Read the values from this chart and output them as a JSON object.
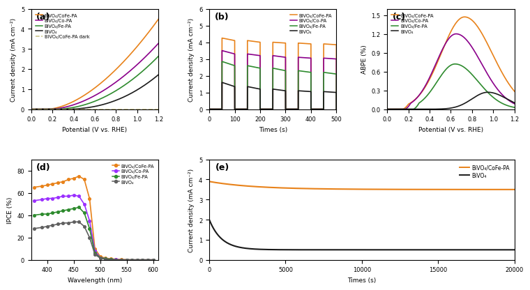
{
  "panel_a": {
    "title": "(a)",
    "xlabel": "Potential (V vs. RHE)",
    "ylabel": "Current density (mA cm⁻²)",
    "xlim": [
      0.0,
      1.2
    ],
    "ylim": [
      0,
      5
    ],
    "yticks": [
      0,
      1,
      2,
      3,
      4,
      5
    ],
    "colors": {
      "CoFe": "#E8821A",
      "Co": "#8B008B",
      "Fe": "#2E8B2E",
      "bare": "#1A1A1A",
      "dark": "#C8C080"
    },
    "legend": [
      "BiVO₄/CoFe-PA",
      "BiVO₄/Co-PA",
      "BiVO₄/Fe-PA",
      "BiVO₄",
      "BiVO₄/CoFe-PA dark"
    ]
  },
  "panel_b": {
    "title": "(b)",
    "xlabel": "Times (s)",
    "ylabel": "Current density (mA cm⁻²)",
    "xlim": [
      0,
      500
    ],
    "ylim": [
      0,
      6
    ],
    "yticks": [
      0,
      1,
      2,
      3,
      4,
      5,
      6
    ],
    "colors": {
      "CoFe": "#E8821A",
      "Co": "#8B008B",
      "Fe": "#2E8B2E",
      "bare": "#1A1A1A"
    },
    "legend": [
      "BiVO₄/CoFe-PA",
      "BiVO₄/Co-PA",
      "BiVO₄/Fe-PA",
      "BiVO₄"
    ]
  },
  "panel_c": {
    "title": "(c)",
    "xlabel": "Potential (V vs. RHE)",
    "ylabel": "ABPE (%)",
    "xlim": [
      0.0,
      1.2
    ],
    "ylim": [
      0,
      1.6
    ],
    "yticks": [
      0.0,
      0.3,
      0.6,
      0.9,
      1.2,
      1.5
    ],
    "colors": {
      "CoFe": "#E8821A",
      "Co": "#8B008B",
      "Fe": "#2E8B2E",
      "bare": "#1A1A1A"
    },
    "legend": [
      "BiVO₄/CoFe-PA",
      "BiVO₄/Co-PA",
      "BiVO₄/Fe-PA",
      "BiVO₄"
    ]
  },
  "panel_d": {
    "title": "(d)",
    "xlabel": "Wavelength (nm)",
    "ylabel": "IPCE (%)",
    "xlim": [
      370,
      610
    ],
    "ylim": [
      0,
      90
    ],
    "yticks": [
      0,
      20,
      40,
      60,
      80
    ],
    "xticks": [
      400,
      450,
      500,
      550,
      600
    ],
    "colors": {
      "CoFe": "#E8821A",
      "Co": "#9B30FF",
      "Fe": "#2E8B2E",
      "bare": "#606060"
    },
    "legend": [
      "BiVO₄/CoFe-PA",
      "BiVO₄/Co-PA",
      "BiVO₄/Fe-PA",
      "BiVO₄"
    ]
  },
  "panel_e": {
    "title": "(e)",
    "xlabel": "Times (s)",
    "ylabel": "Current density (mA cm⁻²)",
    "xlim": [
      0,
      20000
    ],
    "ylim": [
      0,
      5
    ],
    "yticks": [
      0,
      1,
      2,
      3,
      4,
      5
    ],
    "xticks": [
      0,
      5000,
      10000,
      15000,
      20000
    ],
    "colors": {
      "CoFe": "#E8821A",
      "bare": "#1A1A1A"
    },
    "legend": [
      "BiVO₄/CoFe-PA",
      "BiVO₄"
    ]
  }
}
